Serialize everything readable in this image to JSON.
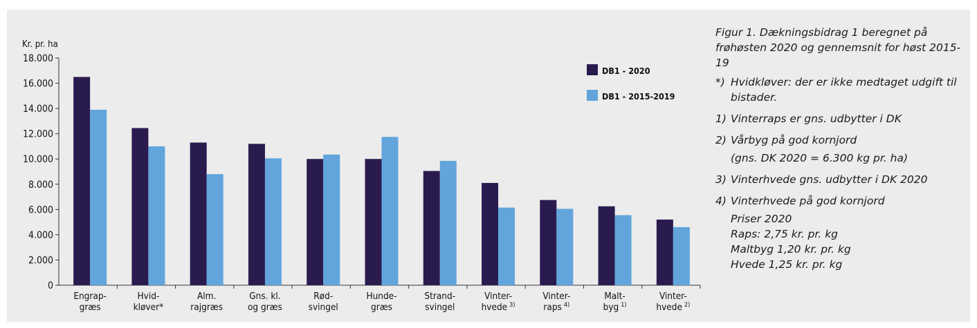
{
  "chart_data": {
    "type": "bar",
    "ylabel": "Kr. pr. ha",
    "ylim": [
      0,
      18000
    ],
    "y_ticks": [
      {
        "value": 0,
        "label": "0"
      },
      {
        "value": 2000,
        "label": "2.000"
      },
      {
        "value": 4000,
        "label": "4.000"
      },
      {
        "value": 6000,
        "label": "6.000"
      },
      {
        "value": 8000,
        "label": "8.000"
      },
      {
        "value": 10000,
        "label": "10.000"
      },
      {
        "value": 12000,
        "label": "12.000"
      },
      {
        "value": 14000,
        "label": "14.000"
      },
      {
        "value": 16000,
        "label": "16.000"
      },
      {
        "value": 18000,
        "label": "18.000"
      }
    ],
    "grid": false,
    "legend_position": "top-right",
    "categories": [
      {
        "line1": "Engrap-",
        "line2": "græs",
        "sup": ""
      },
      {
        "line1": "Hvid-",
        "line2": "kløver*",
        "sup": ""
      },
      {
        "line1": "Alm.",
        "line2": "rajgræs",
        "sup": ""
      },
      {
        "line1": "Gns. kl.",
        "line2": "og græs",
        "sup": ""
      },
      {
        "line1": "Rød-",
        "line2": "svingel",
        "sup": ""
      },
      {
        "line1": "Hunde-",
        "line2": "græs",
        "sup": ""
      },
      {
        "line1": "Strand-",
        "line2": "svingel",
        "sup": ""
      },
      {
        "line1": "Vinter-",
        "line2": "hvede",
        "sup": "3)"
      },
      {
        "line1": "Vinter-",
        "line2": "raps",
        "sup": "4)"
      },
      {
        "line1": "Malt-",
        "line2": "byg",
        "sup": "1)"
      },
      {
        "line1": "Vinter-",
        "line2": "hvede",
        "sup": "2)"
      }
    ],
    "series": [
      {
        "name": "DB1 - 2020",
        "color": "#2a1b4f",
        "values": [
          16500,
          12450,
          11300,
          11200,
          10000,
          10000,
          9050,
          8100,
          6750,
          6250,
          5200
        ]
      },
      {
        "name": "DB1 - 2015-2019",
        "color": "#62a5dc",
        "values": [
          13900,
          11000,
          8800,
          10050,
          10350,
          11750,
          9850,
          6150,
          6050,
          5550,
          4600
        ]
      }
    ]
  },
  "notes": {
    "caption": "Figur 1. Dækningsbidrag 1 beregnet på frøhøsten 2020 og gennemsnit for høst 2015-19",
    "items": [
      {
        "marker": "*)",
        "text": "Hvidkløver: der er ikke medtaget udgift til bistader."
      },
      {
        "marker": "1)",
        "text": "Vinterraps er gns. udbytter i DK"
      },
      {
        "marker": "2)",
        "text": "Vårbyg på god kornjord"
      },
      {
        "marker": "3)",
        "text": "Vinterhvede gns. udbytter i DK 2020"
      },
      {
        "marker": "4)",
        "text": "Vinterhvede på god kornjord"
      }
    ],
    "note2_extra": "(gns. DK 2020 = 6.300 kg pr. ha)",
    "prices_title": "Priser 2020",
    "prices": [
      "Raps: 2,75 kr. pr. kg",
      "Maltbyg 1,20 kr. pr. kg",
      "Hvede 1,25 kr. pr. kg"
    ]
  }
}
